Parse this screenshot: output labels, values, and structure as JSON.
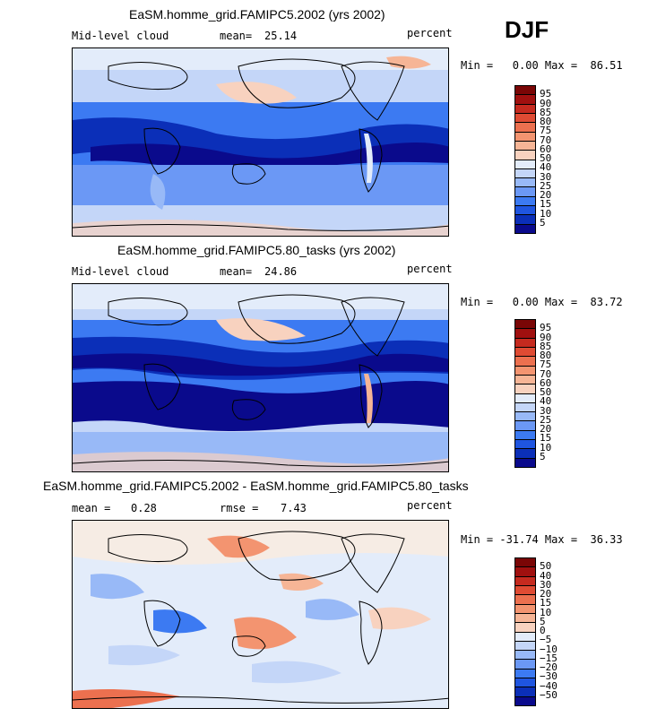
{
  "season": "DJF",
  "colors": {
    "abs_scale": [
      "#0a0a8c",
      "#0b2fb8",
      "#1f55e0",
      "#3c7af2",
      "#6b98f5",
      "#98b9f7",
      "#c4d6f8",
      "#e3ecfa",
      "#f6ece4",
      "#f8d2bf",
      "#f6b596",
      "#f39470",
      "#ec704f",
      "#df4b33",
      "#c52a1f",
      "#a0100f",
      "#7a0606"
    ],
    "diff_scale": [
      "#0a0a8c",
      "#0b2fb8",
      "#1f55e0",
      "#3c7af2",
      "#6b98f5",
      "#98b9f7",
      "#c4d6f8",
      "#e3ecfa",
      "#f6ece4",
      "#f8d2bf",
      "#f6b596",
      "#f39470",
      "#ec704f",
      "#df4b33",
      "#c52a1f",
      "#a0100f",
      "#7a0606"
    ]
  },
  "chart_data": [
    {
      "type": "heatmap",
      "title": "EaSM.homme_grid.FAMIPC5.2002 (yrs 2002)",
      "left_label": "Mid-level cloud",
      "mean_label": "mean=",
      "mean_value": "25.14",
      "units": "percent",
      "stats": "Min =   0.00 Max =  86.51",
      "min": 0.0,
      "max": 86.51,
      "colorbar_ticks": [
        "95",
        "90",
        "85",
        "80",
        "75",
        "70",
        "60",
        "50",
        "40",
        "30",
        "25",
        "20",
        "15",
        "10",
        "5"
      ]
    },
    {
      "type": "heatmap",
      "title": "EaSM.homme_grid.FAMIPC5.80_tasks (yrs 2002)",
      "left_label": "Mid-level cloud",
      "mean_label": "mean=",
      "mean_value": "24.86",
      "units": "percent",
      "stats": "Min =   0.00 Max =  83.72",
      "min": 0.0,
      "max": 83.72,
      "colorbar_ticks": [
        "95",
        "90",
        "85",
        "80",
        "75",
        "70",
        "60",
        "50",
        "40",
        "30",
        "25",
        "20",
        "15",
        "10",
        "5"
      ]
    },
    {
      "type": "heatmap",
      "title": "EaSM.homme_grid.FAMIPC5.2002 - EaSM.homme_grid.FAMIPC5.80_tasks",
      "mean_label": "mean =",
      "mean_value": "0.28",
      "rmse_label": "rmse =",
      "rmse_value": "7.43",
      "units": "percent",
      "stats": "Min = -31.74 Max =  36.33",
      "min": -31.74,
      "max": 36.33,
      "colorbar_ticks": [
        "50",
        "40",
        "30",
        "20",
        "15",
        "10",
        "5",
        "0",
        "−5",
        "−10",
        "−15",
        "−20",
        "−30",
        "−40",
        "−50"
      ]
    }
  ]
}
